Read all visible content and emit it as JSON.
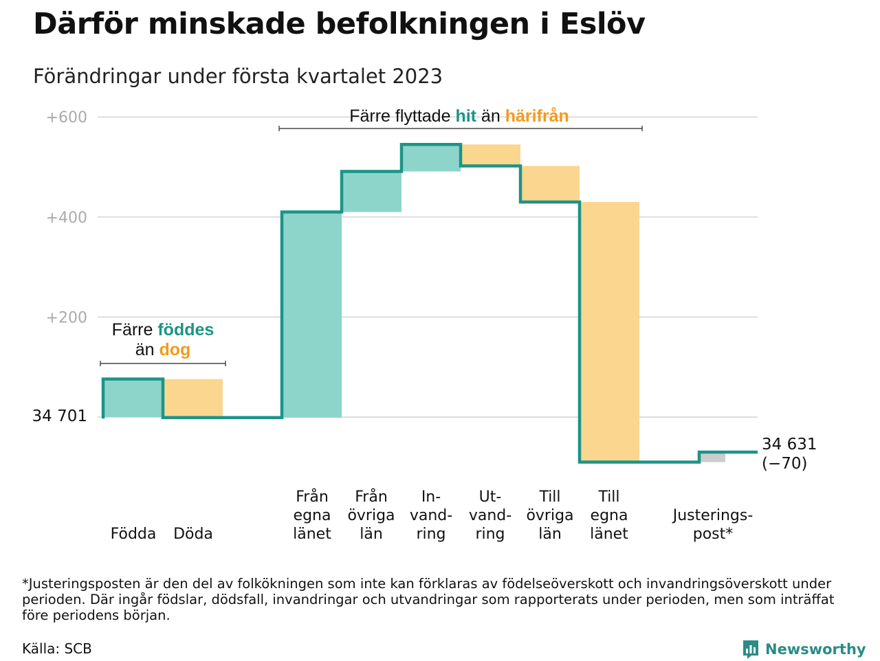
{
  "header": {
    "title": "Därför minskade befolkningen i Eslöv",
    "subtitle": "Förändringar under första kvartalet 2023"
  },
  "colors": {
    "teal_line": "#1b9488",
    "teal_fill": "#8dd5cb",
    "orange_fill": "#fbd68f",
    "orange_text": "#f29b1c",
    "grey_fill": "#cccccc",
    "grid": "#dddddd",
    "tick_text": "#aaaaaa"
  },
  "chart_data": {
    "type": "waterfall",
    "start": {
      "value": 34701,
      "label": "34 701"
    },
    "end": {
      "value": 34631,
      "label": "34 631",
      "change_label": "(−70)"
    },
    "y_axis": {
      "unit": "change vs. 34 701",
      "range": [
        -90,
        610
      ],
      "ticks": [
        {
          "value": 200,
          "label": "+200"
        },
        {
          "value": 400,
          "label": "+400"
        },
        {
          "value": 600,
          "label": "+600"
        }
      ],
      "grid": true
    },
    "steps": [
      {
        "label": [
          "Födda"
        ],
        "from": 0,
        "to": 76,
        "kind": "plus"
      },
      {
        "label": [
          "Döda"
        ],
        "from": 76,
        "to": -1,
        "kind": "minus"
      },
      {
        "label": [
          "Från",
          "egna",
          "länet"
        ],
        "from": -1,
        "to": 410,
        "kind": "plus"
      },
      {
        "label": [
          "Från",
          "övriga",
          "län"
        ],
        "from": 410,
        "to": 491,
        "kind": "plus"
      },
      {
        "label": [
          "In-",
          "vand-",
          "ring"
        ],
        "from": 491,
        "to": 545,
        "kind": "plus"
      },
      {
        "label": [
          "Ut-",
          "vand-",
          "ring"
        ],
        "from": 545,
        "to": 502,
        "kind": "minus"
      },
      {
        "label": [
          "Till",
          "övriga",
          "län"
        ],
        "from": 502,
        "to": 430,
        "kind": "minus"
      },
      {
        "label": [
          "Till",
          "egna",
          "länet"
        ],
        "from": 430,
        "to": -90,
        "kind": "minus"
      },
      {
        "label": [
          "Justerings-",
          "post*"
        ],
        "from": -90,
        "to": -70,
        "kind": "adjustment"
      }
    ],
    "annotations": [
      {
        "covers": [
          "Födda",
          "Döda"
        ],
        "line1": [
          {
            "text": "Färre ",
            "style": "plain"
          },
          {
            "text": "föddes",
            "style": "teal"
          }
        ],
        "line2": [
          {
            "text": "än ",
            "style": "plain"
          },
          {
            "text": "dog",
            "style": "orange"
          }
        ]
      },
      {
        "covers": [
          "Från egna länet",
          "Till egna länet"
        ],
        "line1": [
          {
            "text": "Färre flyttade ",
            "style": "plain"
          },
          {
            "text": "hit",
            "style": "teal"
          },
          {
            "text": " än ",
            "style": "plain"
          },
          {
            "text": "härifrån",
            "style": "orange"
          }
        ]
      }
    ]
  },
  "footer": {
    "footnote": "*Justeringsposten är den del av folkökningen som inte kan förklaras av födelseöverskott och invandringsöverskott under perioden. Där ingår födslar, dödsfall, invandringar och utvandringar som rapporterats under perioden, men som inträffat före periodens början.",
    "source": "Källa: SCB",
    "brand": "Newsworthy"
  }
}
